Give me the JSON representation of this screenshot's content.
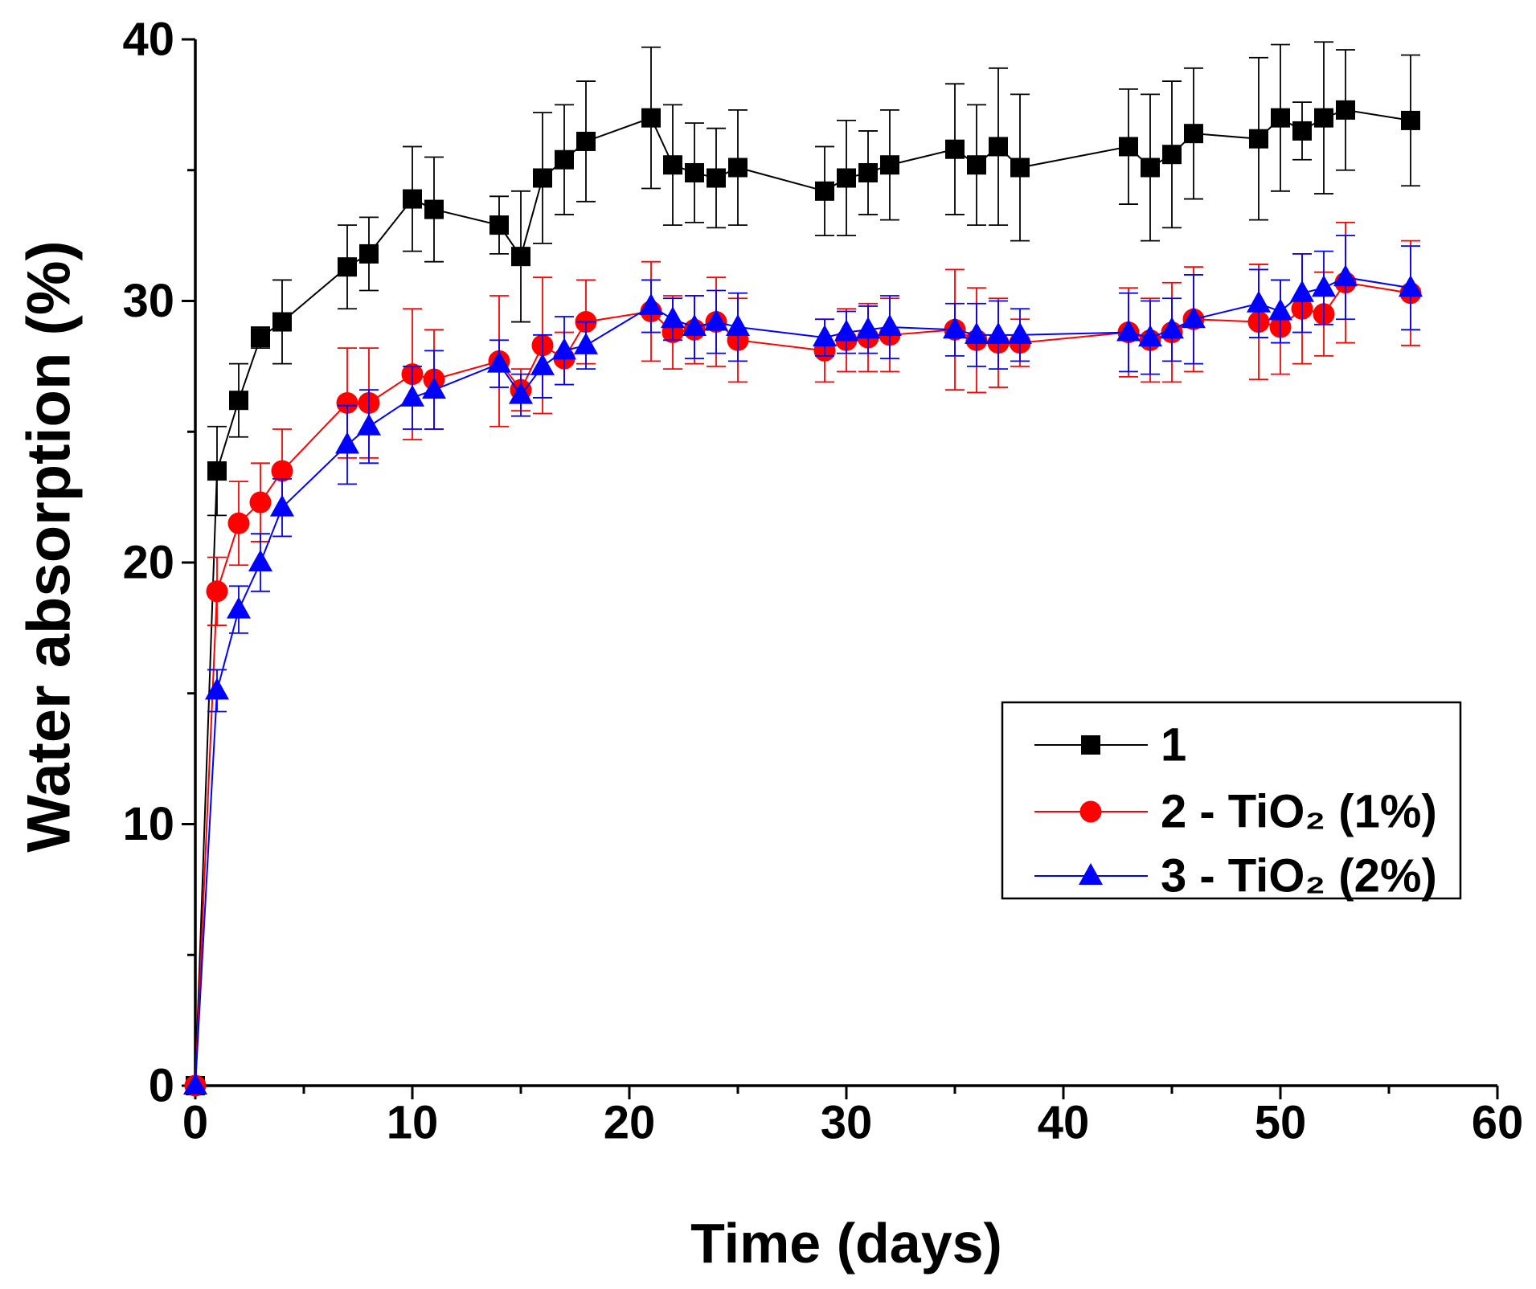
{
  "chart_data": {
    "type": "line",
    "xlabel": "Time (days)",
    "ylabel": "Water absorption (%)",
    "xlim": [
      0,
      60
    ],
    "ylim": [
      0,
      40
    ],
    "xticks": [
      "0",
      "10",
      "20",
      "30",
      "40",
      "50",
      "60"
    ],
    "yticks": [
      "0",
      "10",
      "20",
      "30",
      "40"
    ],
    "legend_position": "lower-right",
    "x": [
      0,
      1,
      2,
      3,
      4,
      7,
      8,
      10,
      11,
      14,
      15,
      16,
      17,
      18,
      21,
      22,
      23,
      24,
      25,
      29,
      30,
      31,
      32,
      35,
      36,
      37,
      38,
      43,
      44,
      45,
      46,
      49,
      50,
      51,
      52,
      53,
      56
    ],
    "series": [
      {
        "name": "1",
        "color": "#000000",
        "marker": "square",
        "y": [
          0,
          23.5,
          26.2,
          28.6,
          29.2,
          31.3,
          31.8,
          33.9,
          33.5,
          32.9,
          31.7,
          34.7,
          35.4,
          36.1,
          37.0,
          35.2,
          34.9,
          34.7,
          35.1,
          34.2,
          34.7,
          34.9,
          35.2,
          35.8,
          35.2,
          35.9,
          35.1,
          35.9,
          35.1,
          35.6,
          36.4,
          36.2,
          37.0,
          36.5,
          37.0,
          37.3,
          36.9
        ],
        "err": [
          0,
          1.7,
          1.4,
          0.4,
          1.6,
          1.6,
          1.4,
          2.0,
          2.0,
          1.1,
          2.5,
          2.5,
          2.1,
          2.3,
          2.7,
          2.3,
          1.9,
          1.9,
          2.2,
          1.7,
          2.2,
          1.6,
          2.1,
          2.5,
          2.3,
          3.0,
          2.8,
          2.2,
          2.8,
          2.8,
          2.5,
          3.1,
          2.8,
          1.1,
          2.9,
          2.3,
          2.5
        ]
      },
      {
        "name": "2 - TiO₂ (1%)",
        "color": "#ff0000",
        "marker": "circle",
        "y": [
          0,
          18.9,
          21.5,
          22.3,
          23.5,
          26.1,
          26.1,
          27.2,
          27.0,
          27.7,
          26.6,
          28.3,
          27.8,
          29.2,
          29.6,
          28.8,
          28.9,
          29.2,
          28.5,
          28.1,
          28.5,
          28.6,
          28.7,
          28.9,
          28.5,
          28.4,
          28.4,
          28.8,
          28.5,
          28.8,
          29.3,
          29.2,
          29.0,
          29.7,
          29.5,
          30.7,
          30.3
        ],
        "err": [
          0,
          1.3,
          1.6,
          1.5,
          1.6,
          2.1,
          2.1,
          2.5,
          1.9,
          2.5,
          0.8,
          2.6,
          1.0,
          1.6,
          1.9,
          1.4,
          1.3,
          1.7,
          1.6,
          1.2,
          1.2,
          1.3,
          1.4,
          2.3,
          2.0,
          1.7,
          0.9,
          1.7,
          1.6,
          1.9,
          2.0,
          2.2,
          1.8,
          2.1,
          1.6,
          2.3,
          2.0
        ]
      },
      {
        "name": "3 - TiO₂ (2%)",
        "color": "#0000ff",
        "marker": "triangle",
        "y": [
          0,
          15.1,
          18.2,
          20.0,
          22.1,
          24.5,
          25.2,
          26.3,
          26.6,
          27.6,
          26.4,
          27.5,
          28.1,
          28.3,
          29.8,
          29.3,
          29.0,
          29.2,
          29.0,
          28.6,
          28.8,
          28.9,
          29.0,
          28.9,
          28.7,
          28.7,
          28.7,
          28.8,
          28.6,
          28.9,
          29.3,
          29.9,
          29.6,
          30.3,
          30.5,
          30.9,
          30.5
        ],
        "err": [
          0,
          0.8,
          0.9,
          1.1,
          1.1,
          1.5,
          1.4,
          1.2,
          1.5,
          0.9,
          0.8,
          1.2,
          1.3,
          0.9,
          1.0,
          0.8,
          1.2,
          1.2,
          1.3,
          0.7,
          0.8,
          0.9,
          1.2,
          1.0,
          1.2,
          1.3,
          1.0,
          1.5,
          1.4,
          1.2,
          1.7,
          1.3,
          1.2,
          1.5,
          1.4,
          1.6,
          1.6
        ]
      }
    ]
  }
}
